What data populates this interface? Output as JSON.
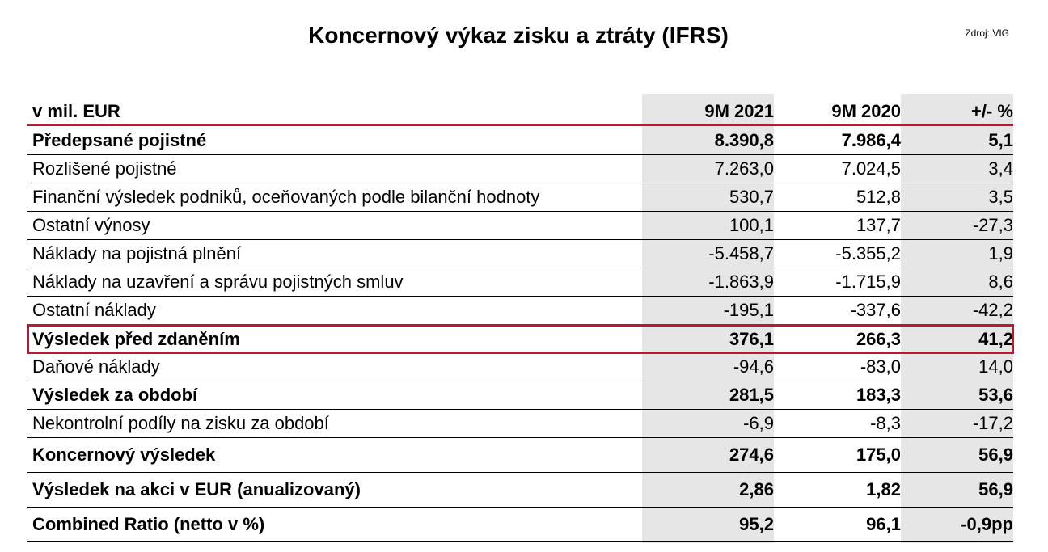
{
  "title": "Koncernový výkaz zisku a ztráty  (IFRS)",
  "source": "Zdroj: VIG",
  "header": {
    "label": "v mil. EUR",
    "col1": "9M 2021",
    "col2": "9M 2020",
    "col3": "+/- %"
  },
  "rows": [
    {
      "label": "Předepsané pojistné",
      "v1": "8.390,8",
      "v2": "7.986,4",
      "v3": "5,1"
    },
    {
      "label": "Rozlišené pojistné",
      "v1": "7.263,0",
      "v2": "7.024,5",
      "v3": "3,4"
    },
    {
      "label": "Finanční výsledek podniků, oceňovaných podle bilanční hodnoty",
      "v1": "530,7",
      "v2": "512,8",
      "v3": "3,5"
    },
    {
      "label": "Ostatní výnosy",
      "v1": "100,1",
      "v2": "137,7",
      "v3": "-27,3"
    },
    {
      "label": "Náklady na pojistná plnění",
      "v1": "-5.458,7",
      "v2": "-5.355,2",
      "v3": "1,9"
    },
    {
      "label": "Náklady na uzavření a správu pojistných smluv",
      "v1": "-1.863,9",
      "v2": "-1.715,9",
      "v3": "8,6"
    },
    {
      "label": "Ostatní náklady",
      "v1": "-195,1",
      "v2": "-337,6",
      "v3": "-42,2"
    },
    {
      "label": "Výsledek před zdaněním",
      "v1": "376,1",
      "v2": "266,3",
      "v3": "41,2"
    },
    {
      "label": "Daňové náklady",
      "v1": "-94,6",
      "v2": "-83,0",
      "v3": "14,0"
    },
    {
      "label": "Výsledek za období",
      "v1": "281,5",
      "v2": "183,3",
      "v3": "53,6"
    },
    {
      "label": "Nekontrolní podíly na zisku za období",
      "v1": "-6,9",
      "v2": "-8,3",
      "v3": "-17,2"
    },
    {
      "label": "Koncernový výsledek",
      "v1": "274,6",
      "v2": "175,0",
      "v3": "56,9"
    },
    {
      "label": "Výsledek na akci v EUR (anualizovaný)",
      "v1": "2,86",
      "v2": "1,82",
      "v3": "56,9"
    },
    {
      "label": "Combined Ratio (netto v %)",
      "v1": "95,2",
      "v2": "96,1",
      "v3": "-0,9pp"
    }
  ],
  "colors": {
    "accent_red": "#c0182a",
    "column_shade": "#e6e6e6"
  }
}
